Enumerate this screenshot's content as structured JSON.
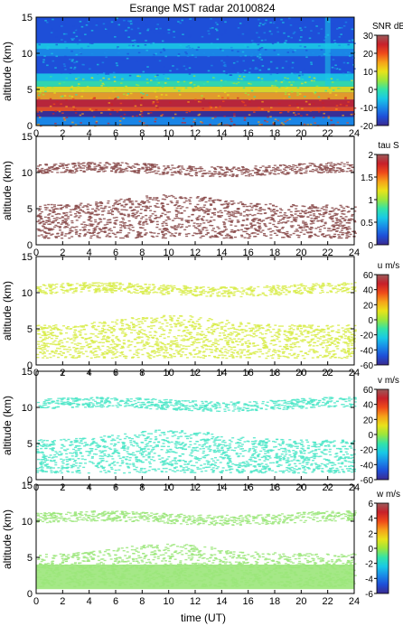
{
  "title": "Esrange MST radar 20100824",
  "xlabel": "time (UT)",
  "colormap": [
    "#3b2a8f",
    "#1e4fd8",
    "#1a8be8",
    "#19c9e6",
    "#33e3a8",
    "#9be63c",
    "#e9e21a",
    "#f6a21a",
    "#ef4a1a",
    "#c8202a",
    "#9a5a5a"
  ],
  "chart_data": [
    {
      "type": "heatmap",
      "name": "snr",
      "ylabel": "altitude (km)",
      "xlim": [
        0,
        24
      ],
      "ylim": [
        0,
        15
      ],
      "xticks": [
        "0",
        "2",
        "4",
        "6",
        "8",
        "10",
        "12",
        "14",
        "16",
        "18",
        "20",
        "22",
        "24"
      ],
      "yticks": [
        "0",
        "5",
        "10",
        "15"
      ],
      "colorbar": {
        "label": "SNR dB",
        "range": [
          -20,
          30
        ],
        "ticks": [
          "30",
          "20",
          "10",
          "0",
          "-10",
          "-20"
        ]
      }
    },
    {
      "type": "heatmap",
      "name": "tau",
      "ylabel": "altitude (km)",
      "xlim": [
        0,
        24
      ],
      "ylim": [
        0,
        15
      ],
      "xticks": [
        "0",
        "2",
        "4",
        "6",
        "8",
        "10",
        "12",
        "14",
        "16",
        "18",
        "20",
        "22",
        "24"
      ],
      "yticks": [
        "0",
        "5",
        "10",
        "15"
      ],
      "colorbar": {
        "label": "tau S",
        "range": [
          0,
          2
        ],
        "ticks": [
          "2",
          "1.5",
          "1",
          "0.5",
          "0"
        ]
      }
    },
    {
      "type": "heatmap",
      "name": "u",
      "ylabel": "altitude (km)",
      "xlim": [
        0,
        24
      ],
      "ylim": [
        0,
        15
      ],
      "xticks": [
        "0",
        "2",
        "4",
        "6",
        "8",
        "10",
        "12",
        "14",
        "16",
        "18",
        "20",
        "22",
        "24"
      ],
      "yticks": [
        "0",
        "5",
        "10",
        "15"
      ],
      "colorbar": {
        "label": "u m/s",
        "range": [
          -60,
          60
        ],
        "ticks": [
          "60",
          "40",
          "20",
          "0",
          "-20",
          "-40",
          "-60"
        ]
      }
    },
    {
      "type": "heatmap",
      "name": "v",
      "ylabel": "altitude (km)",
      "xlim": [
        0,
        24
      ],
      "ylim": [
        0,
        15
      ],
      "xticks": [
        "0",
        "2",
        "4",
        "6",
        "8",
        "10",
        "12",
        "14",
        "16",
        "18",
        "20",
        "22",
        "24"
      ],
      "yticks": [
        "0",
        "5",
        "10",
        "15"
      ],
      "colorbar": {
        "label": "v m/s",
        "range": [
          -60,
          60
        ],
        "ticks": [
          "60",
          "40",
          "20",
          "0",
          "-20",
          "-40",
          "-60"
        ]
      }
    },
    {
      "type": "heatmap",
      "name": "w",
      "ylabel": "altitude (km)",
      "xlim": [
        0,
        24
      ],
      "ylim": [
        0,
        15
      ],
      "xticks": [
        "0",
        "2",
        "4",
        "6",
        "8",
        "10",
        "12",
        "14",
        "16",
        "18",
        "20",
        "22",
        "24"
      ],
      "yticks": [
        "0",
        "5",
        "10",
        "15"
      ],
      "colorbar": {
        "label": "w m/s",
        "range": [
          -6,
          6
        ],
        "ticks": [
          "6",
          "4",
          "2",
          "0",
          "-2",
          "-4",
          "-6"
        ]
      }
    }
  ]
}
